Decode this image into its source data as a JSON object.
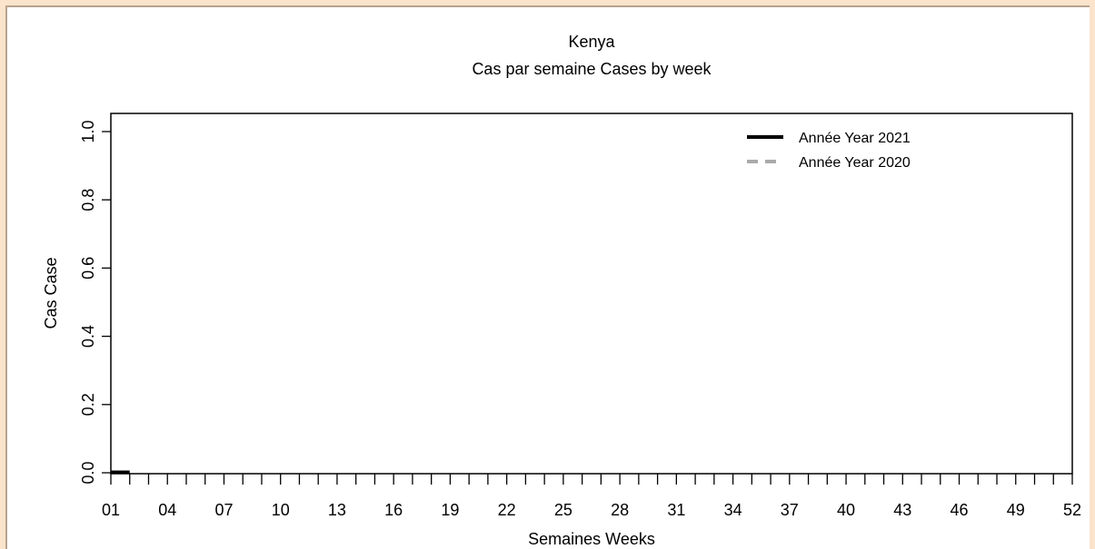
{
  "chart_data": {
    "type": "line",
    "title": "Kenya",
    "subtitle": "Cas par semaine Cases by week",
    "xlabel": "Semaines Weeks",
    "ylabel": "Cas Case",
    "xlim": [
      1,
      52
    ],
    "ylim": [
      0,
      1
    ],
    "x_tick_labels": [
      "01",
      "04",
      "07",
      "10",
      "13",
      "16",
      "19",
      "22",
      "25",
      "28",
      "31",
      "34",
      "37",
      "40",
      "43",
      "46",
      "49",
      "52"
    ],
    "y_tick_labels": [
      "0.0",
      "0.2",
      "0.4",
      "0.6",
      "0.8",
      "1.0"
    ],
    "series": [
      {
        "name": "Année Year 2021",
        "color": "#000000",
        "style": "solid",
        "x": [
          1,
          2
        ],
        "values": [
          0,
          0
        ]
      },
      {
        "name": "Année Year 2020",
        "color": "#aaaaaa",
        "style": "dashed",
        "x": [],
        "values": []
      }
    ],
    "legend_position": "top-right",
    "grid": false
  }
}
